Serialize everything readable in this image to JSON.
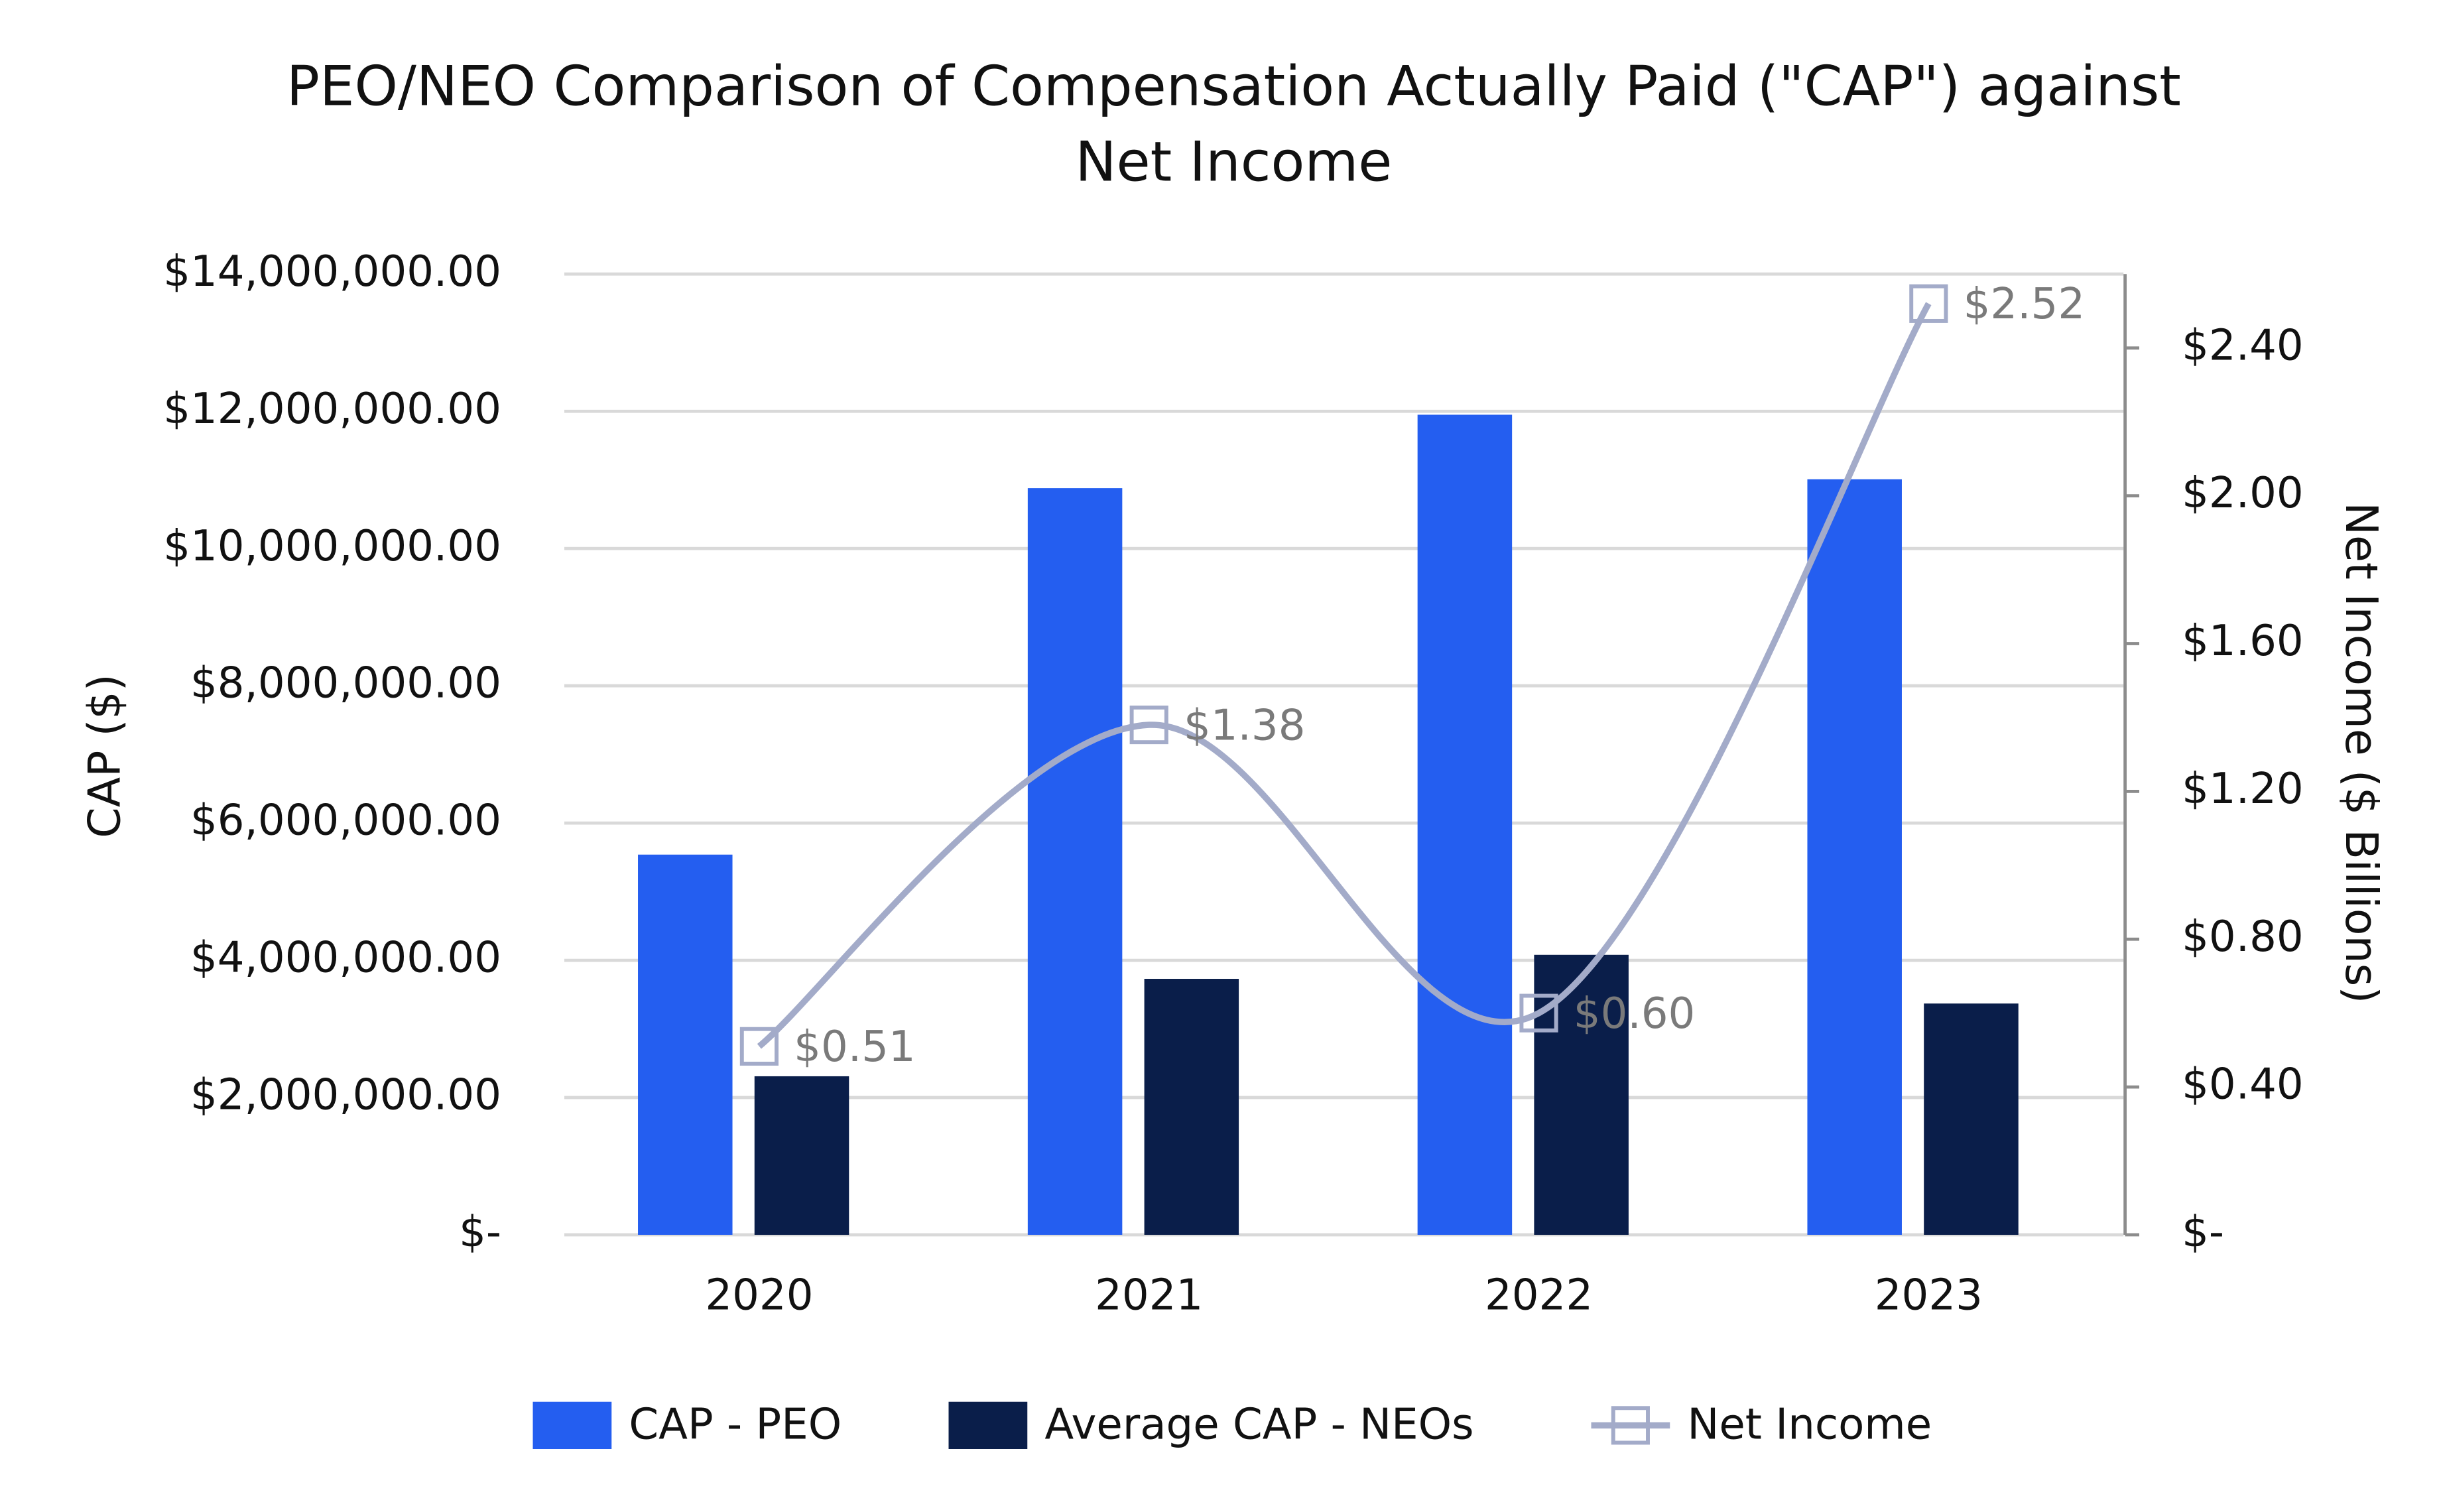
{
  "chart_data": {
    "type": "bar-line",
    "title": [
      "PEO/NEO Comparison of Compensation Actually Paid (\"CAP\") against",
      "Net Income"
    ],
    "y_label": "CAP ($)",
    "y2_label": "Net Income ($ Billions)",
    "categories": [
      "2020",
      "2021",
      "2022",
      "2023"
    ],
    "series": [
      {
        "name": "CAP - PEO",
        "type": "bar",
        "color": "#245ef0",
        "values": [
          5540000,
          10880000,
          11950000,
          11010000
        ]
      },
      {
        "name": "Average CAP - NEOs",
        "type": "bar",
        "color": "#0a1e4a",
        "values": [
          2310000,
          3730000,
          4080000,
          3370000
        ]
      },
      {
        "name": "Net Income",
        "type": "line",
        "axis": "y2",
        "color": "#a3abc9",
        "values": [
          0.51,
          1.38,
          0.6,
          2.52
        ],
        "value_labels": [
          "$0.51",
          "$1.38",
          "$0.60",
          "$2.52"
        ]
      }
    ],
    "ylim": [
      0,
      14000000
    ],
    "yticks": [
      {
        "value": 0,
        "label": "$-"
      },
      {
        "value": 2000000,
        "label": "$2,000,000.00"
      },
      {
        "value": 4000000,
        "label": "$4,000,000.00"
      },
      {
        "value": 6000000,
        "label": "$6,000,000.00"
      },
      {
        "value": 8000000,
        "label": "$8,000,000.00"
      },
      {
        "value": 10000000,
        "label": "$10,000,000.00"
      },
      {
        "value": 12000000,
        "label": "$12,000,000.00"
      },
      {
        "value": 14000000,
        "label": "$14,000,000.00"
      }
    ],
    "y2lim": [
      0,
      2.6
    ],
    "y2ticks": [
      {
        "value": 0,
        "label": "$-"
      },
      {
        "value": 0.4,
        "label": "$0.40"
      },
      {
        "value": 0.8,
        "label": "$0.80"
      },
      {
        "value": 1.2,
        "label": "$1.20"
      },
      {
        "value": 1.6,
        "label": "$1.60"
      },
      {
        "value": 2.0,
        "label": "$2.00"
      },
      {
        "value": 2.4,
        "label": "$2.40"
      }
    ],
    "grid": true,
    "legend": "bottom"
  }
}
